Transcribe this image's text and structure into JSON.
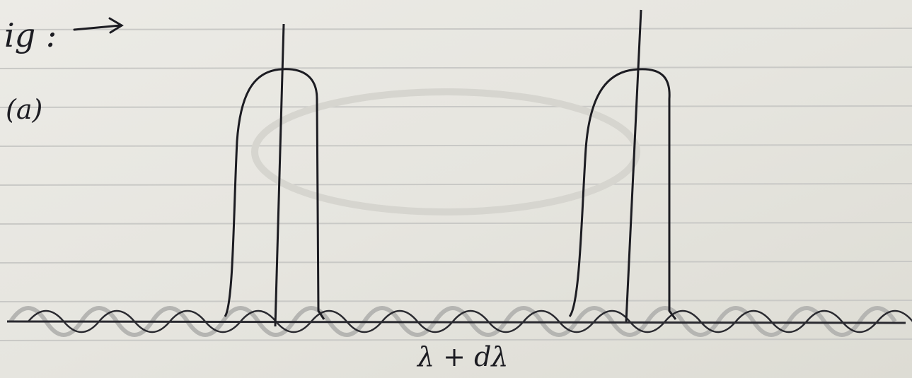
{
  "header": {
    "label": "ig :",
    "subfigure": "(a)"
  },
  "axis": {
    "label": "λ + dλ"
  }
}
